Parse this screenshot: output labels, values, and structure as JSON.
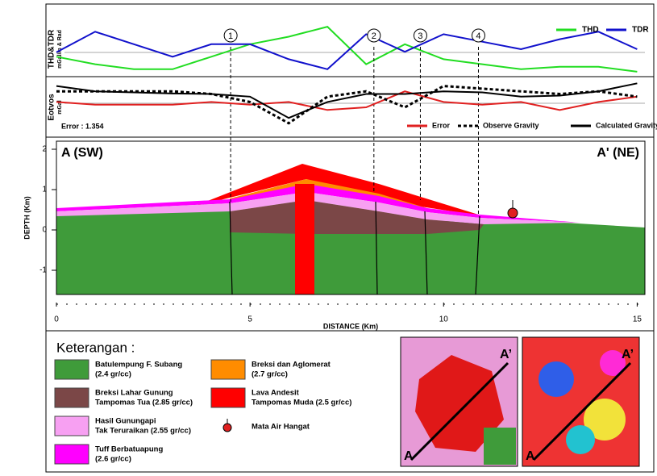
{
  "chart_data": [
    {
      "type": "line",
      "ylabel": "THD&TDR",
      "ylabel_unit": "mGal/m & Rad",
      "x": [
        0,
        1,
        2,
        3,
        4,
        5,
        6,
        7,
        8,
        9,
        10,
        11,
        12,
        13,
        14,
        15
      ],
      "xlim": [
        0,
        15.2
      ],
      "ylim": [
        0,
        1
      ],
      "series": [
        {
          "name": "THD",
          "color": "#22dd22",
          "values": [
            0.35,
            0.2,
            0.1,
            0.1,
            0.35,
            0.6,
            0.75,
            0.95,
            0.2,
            0.6,
            0.3,
            0.2,
            0.1,
            0.15,
            0.15,
            0.05
          ]
        },
        {
          "name": "TDR",
          "color": "#1111cc",
          "values": [
            0.44,
            0.85,
            0.6,
            0.35,
            0.6,
            0.6,
            0.3,
            0.1,
            0.8,
            0.45,
            0.8,
            0.65,
            0.5,
            0.7,
            0.85,
            0.5
          ]
        }
      ],
      "markers": [
        {
          "label": "1",
          "x": 4.5
        },
        {
          "label": "2",
          "x": 8.2
        },
        {
          "label": "3",
          "x": 9.4
        },
        {
          "label": "4",
          "x": 10.9
        }
      ]
    },
    {
      "type": "line",
      "ylabel": "Eotvos",
      "ylabel_unit": "mGal",
      "annotation": "Error : 1.354",
      "x": [
        0,
        1,
        2,
        3,
        4,
        5,
        6,
        7,
        8,
        9,
        10,
        11,
        12,
        13,
        14,
        15
      ],
      "xlim": [
        0,
        15.2
      ],
      "ylim": [
        0,
        1
      ],
      "series": [
        {
          "name": "Error",
          "color": "#e02020",
          "dash": "solid",
          "values": [
            0.6,
            0.55,
            0.55,
            0.55,
            0.6,
            0.55,
            0.6,
            0.45,
            0.5,
            0.8,
            0.6,
            0.55,
            0.6,
            0.45,
            0.6,
            0.7
          ]
        },
        {
          "name": "Observe Gravity",
          "color": "#000000",
          "dash": "dotted",
          "values": [
            0.8,
            0.8,
            0.8,
            0.8,
            0.75,
            0.6,
            0.2,
            0.7,
            0.8,
            0.5,
            0.9,
            0.85,
            0.8,
            0.75,
            0.8,
            0.7
          ]
        },
        {
          "name": "Calculated Gravity",
          "color": "#000000",
          "dash": "solid",
          "values": [
            0.9,
            0.8,
            0.78,
            0.76,
            0.75,
            0.7,
            0.3,
            0.6,
            0.75,
            0.75,
            0.8,
            0.78,
            0.7,
            0.72,
            0.8,
            0.95
          ]
        }
      ]
    },
    {
      "type": "section",
      "left_label": "A (SW)",
      "right_label": "A' (NE)",
      "xlabel": "DISTANCE (Km)",
      "ylabel": "DEPTH (Km)",
      "xlim": [
        0,
        15.2
      ],
      "ylim": [
        -1.6,
        2.2
      ],
      "xticks": [
        0,
        5,
        10,
        15
      ],
      "yticks": [
        2,
        1,
        0,
        -1
      ]
    }
  ],
  "legend": {
    "title": "Keterangan :",
    "items": [
      {
        "label": "Batulempung F. Subang",
        "density": "(2.4 gr/cc)",
        "color": "#3f9b3a"
      },
      {
        "label": "Breksi Lahar Gunung",
        "density": "Tampomas Tua (2.85 gr/cc)",
        "color": "#7b4747"
      },
      {
        "label": "Hasil Gunungapi",
        "density": "Tak Teruraikan (2.55 gr/cc)",
        "color": "#f7a0f2"
      },
      {
        "label": "Tuff Berbatuapung",
        "density": "(2.6 gr/cc)",
        "color": "#ff00ff"
      },
      {
        "label": "Breksi dan Aglomerat",
        "density": "(2.7 gr/cc)",
        "color": "#ff8c00"
      },
      {
        "label": "Lava Andesit",
        "density": "Tampomas Muda (2.5 gr/cc)",
        "color": "#ff0000"
      },
      {
        "label": "Mata Air Hangat",
        "density": "",
        "color": "#e02020"
      }
    ]
  },
  "maps": [
    {
      "start": "A",
      "end": "A’"
    },
    {
      "start": "A",
      "end": "A’"
    }
  ]
}
